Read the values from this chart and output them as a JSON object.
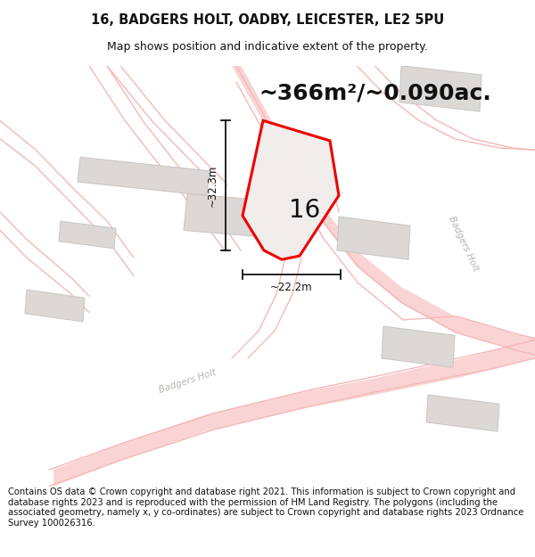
{
  "title": "16, BADGERS HOLT, OADBY, LEICESTER, LE2 5PU",
  "subtitle": "Map shows position and indicative extent of the property.",
  "area_text": "~366m²/~0.090ac.",
  "width_label": "~22.2m",
  "height_label": "~32.3m",
  "number_label": "16",
  "footer": "Contains OS data © Crown copyright and database right 2021. This information is subject to Crown copyright and database rights 2023 and is reproduced with the permission of HM Land Registry. The polygons (including the associated geometry, namely x, y co-ordinates) are subject to Crown copyright and database rights 2023 Ordnance Survey 100026316.",
  "bg_color": "#ffffff",
  "map_bg": "#f7f5f5",
  "road_fill": "#fad4d4",
  "road_line": "#f5b8b8",
  "building_fill": "#dbd8d6",
  "building_edge": "#c8c4c2",
  "plot_outline": "#ee0000",
  "plot_fill": "#f0edeb",
  "dim_color": "#111111",
  "road_label_color": "#b8b4b0",
  "title_fontsize": 10.5,
  "subtitle_fontsize": 9,
  "area_fontsize": 18,
  "dim_fontsize": 8.5,
  "number_fontsize": 20,
  "footer_fontsize": 7.2,
  "road_lw": 1.2
}
